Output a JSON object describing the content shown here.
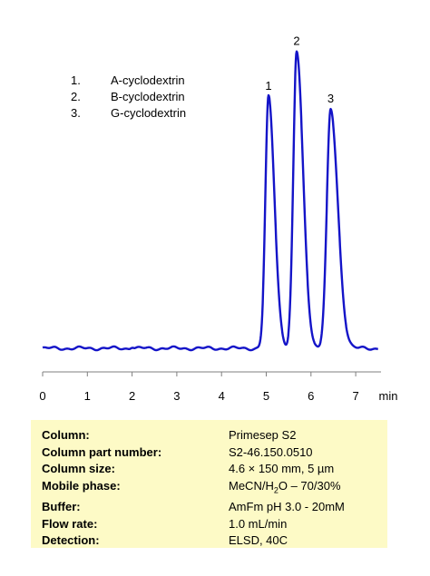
{
  "chart_data": {
    "type": "line",
    "xlabel": "min",
    "xlim": [
      0,
      7.5
    ],
    "ylim": [
      0,
      100
    ],
    "x_ticks": [
      0,
      1,
      2,
      3,
      4,
      5,
      6,
      7
    ],
    "grid": false,
    "line_color": "#1414c8",
    "baseline": 2,
    "peaks": [
      {
        "label": "1",
        "time": 5.05,
        "height": 80,
        "width": 0.07
      },
      {
        "label": "2",
        "time": 5.68,
        "height": 94,
        "width": 0.075
      },
      {
        "label": "3",
        "time": 6.44,
        "height": 76,
        "width": 0.085
      }
    ]
  },
  "legend": {
    "items": [
      {
        "num": "1.",
        "name": "A-cyclodextrin"
      },
      {
        "num": "2.",
        "name": "B-cyclodextrin"
      },
      {
        "num": "3.",
        "name": "G-cyclodextrin"
      }
    ]
  },
  "conditions": {
    "column_label": "Column:",
    "column_value": "Primesep  S2",
    "part_label": "Column part number:",
    "part_value": "S2-46.150.0510",
    "size_label": "Column size:",
    "size_value": "4.6 × 150 mm, 5 µm",
    "mobile_label": "Mobile phase:",
    "mobile_value_a": "MeCN/H",
    "mobile_value_sub": "2",
    "mobile_value_b": "O – 70/30%",
    "buffer_label": "Buffer:",
    "buffer_value": "AmFm pH 3.0 - 20mM",
    "flow_label": "Flow rate:",
    "flow_value": "1.0 mL/min",
    "detection_label": "Detection:",
    "detection_value": "ELSD, 40C"
  }
}
